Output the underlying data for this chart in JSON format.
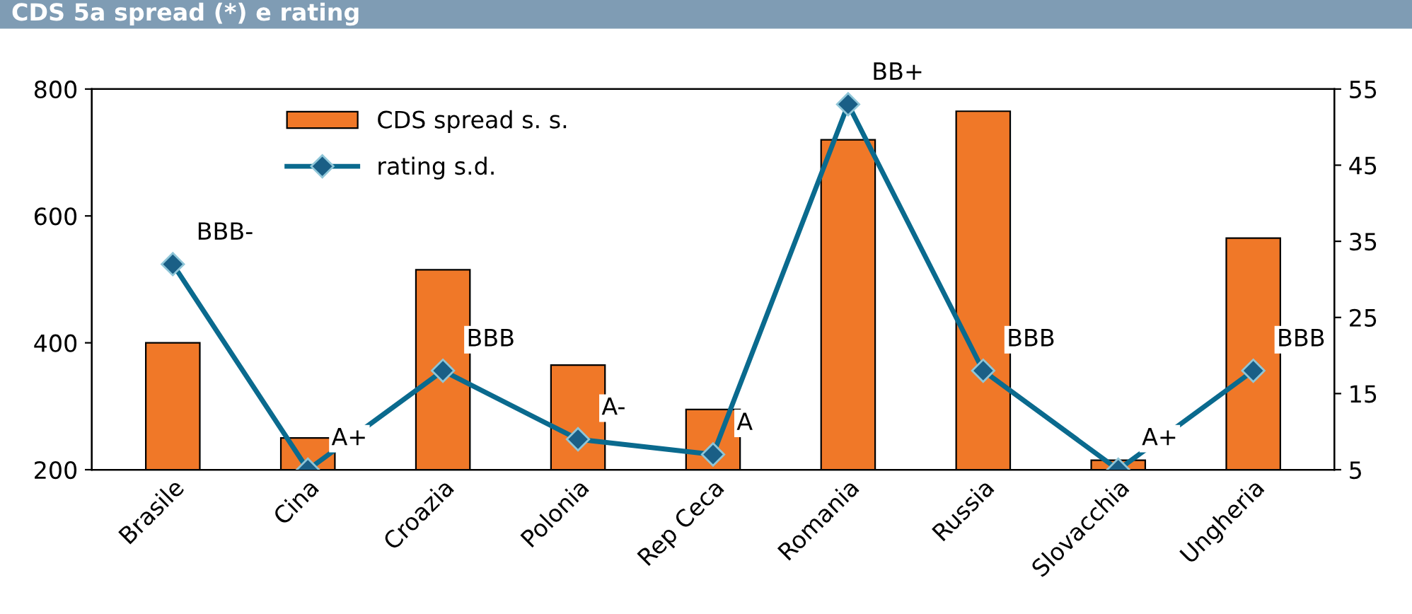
{
  "chart_data": {
    "type": "bar",
    "title": "CDS 5a spread (*) e rating",
    "categories": [
      "Brasile",
      "Cina",
      "Croazia",
      "Polonia",
      "Rep Ceca",
      "Romania",
      "Russia",
      "Slovacchia",
      "Ungheria"
    ],
    "series": [
      {
        "name": "CDS spread s. s.",
        "color": "#f07828",
        "values": [
          400,
          250,
          515,
          365,
          295,
          720,
          765,
          215,
          565
        ]
      },
      {
        "name": "rating s.d.",
        "type": "line",
        "axis": "y2",
        "color": "#0a6a8e",
        "marker": "diamond",
        "values": [
          32,
          5,
          18,
          9,
          7,
          53,
          18,
          5,
          18
        ],
        "value_labels": [
          "BBB-",
          "A+",
          "BBB",
          "A-",
          "A",
          "BB+",
          "BBB",
          "A+",
          "BBB"
        ]
      }
    ],
    "ylim": [
      200,
      800
    ],
    "yticks": [
      200,
      400,
      600,
      800
    ],
    "y2lim": [
      5,
      55
    ],
    "y2ticks": [
      5,
      15,
      25,
      35,
      45,
      55
    ],
    "grid": false,
    "legend": "top left"
  }
}
